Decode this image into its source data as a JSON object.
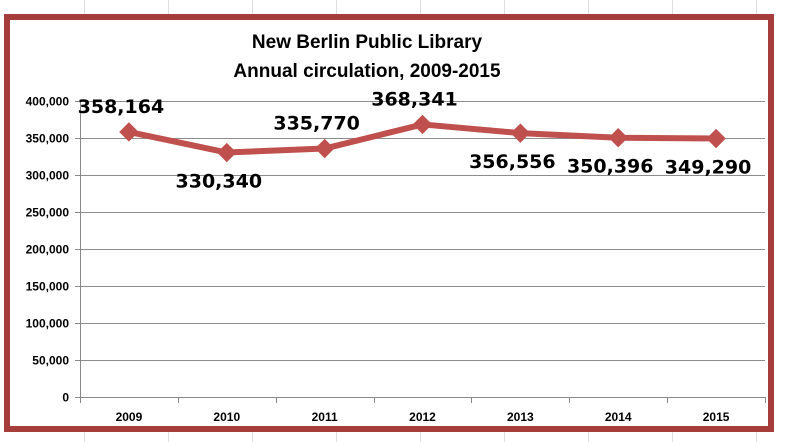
{
  "chart_data": {
    "type": "line",
    "title": "New Berlin Public Library",
    "subtitle": "Annual circulation, 2009-2015",
    "categories": [
      "2009",
      "2010",
      "2011",
      "2012",
      "2013",
      "2014",
      "2015"
    ],
    "series": [
      {
        "values": [
          358164,
          330340,
          335770,
          368341,
          356556,
          350396,
          349290
        ],
        "data_labels": [
          "358,164",
          "330,340",
          "335,770",
          "368,341",
          "356,556",
          "350,396",
          "349,290"
        ],
        "color": "#c0504d",
        "marker": "diamond"
      }
    ],
    "ylim": [
      0,
      400000
    ],
    "yticks": [
      0,
      50000,
      100000,
      150000,
      200000,
      250000,
      300000,
      350000,
      400000
    ],
    "ytick_labels": [
      "0",
      "50,000",
      "100,000",
      "150,000",
      "200,000",
      "250,000",
      "300,000",
      "350,000",
      "400,000"
    ],
    "grid": true,
    "legend": "none",
    "xlabel": "",
    "ylabel": ""
  },
  "colors": {
    "frame": "#a53d3b",
    "line": "#c0504d",
    "gridline": "#8c8c8c"
  }
}
